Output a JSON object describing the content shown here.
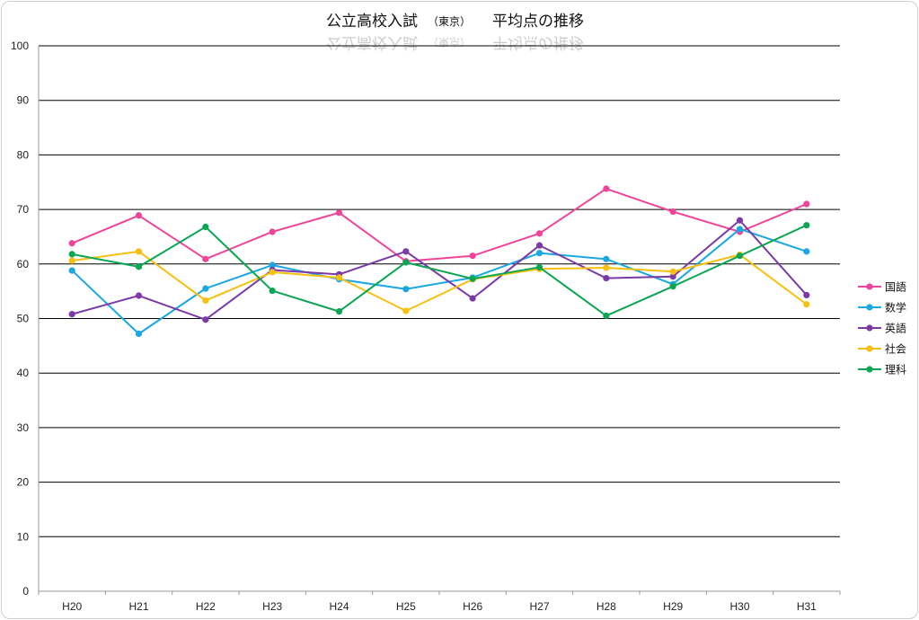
{
  "chart_data": {
    "type": "line",
    "title_main": "公立高校入試",
    "title_sub": "（東京）",
    "title_tail": "平均点の推移",
    "categories": [
      "H20",
      "H21",
      "H22",
      "H23",
      "H24",
      "H25",
      "H26",
      "H27",
      "H28",
      "H29",
      "H30",
      "H31"
    ],
    "ylim": [
      0,
      100
    ],
    "yticks": [
      0,
      10,
      20,
      30,
      40,
      50,
      60,
      70,
      80,
      90,
      100
    ],
    "grid": true,
    "legend_position": "right",
    "series": [
      {
        "name": "国語",
        "color": "#f0449a",
        "values": [
          63.8,
          68.9,
          60.9,
          65.9,
          69.4,
          60.5,
          61.5,
          65.6,
          73.8,
          69.6,
          65.9,
          71.0
        ]
      },
      {
        "name": "数学",
        "color": "#1aa7e2",
        "values": [
          58.8,
          47.2,
          55.5,
          59.8,
          57.2,
          55.4,
          57.5,
          62.0,
          60.9,
          56.3,
          66.4,
          62.3
        ]
      },
      {
        "name": "英語",
        "color": "#7b3aa8",
        "values": [
          50.8,
          54.2,
          49.8,
          58.9,
          58.1,
          62.3,
          53.7,
          63.4,
          57.4,
          57.7,
          68.0,
          54.3
        ]
      },
      {
        "name": "社会",
        "color": "#f7bf0f",
        "values": [
          60.6,
          62.3,
          53.3,
          58.5,
          57.5,
          51.4,
          57.2,
          59.1,
          59.3,
          58.6,
          61.7,
          52.6
        ]
      },
      {
        "name": "理科",
        "color": "#0aa652",
        "values": [
          61.8,
          59.5,
          66.8,
          55.1,
          51.3,
          60.3,
          57.3,
          59.4,
          50.5,
          55.9,
          61.5,
          67.1
        ]
      }
    ]
  }
}
